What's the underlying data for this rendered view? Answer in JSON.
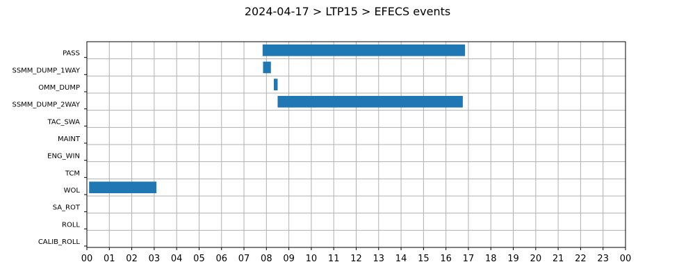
{
  "chart_data": {
    "type": "bar",
    "orientation": "horizontal-timeline",
    "title": "2024-04-17 > LTP15 > EFECS events",
    "xlabel": "",
    "ylabel": "",
    "xlim": [
      0,
      24
    ],
    "x_tick_labels": [
      "00",
      "01",
      "02",
      "03",
      "04",
      "05",
      "06",
      "07",
      "08",
      "09",
      "10",
      "11",
      "12",
      "13",
      "14",
      "15",
      "16",
      "17",
      "18",
      "19",
      "20",
      "21",
      "22",
      "23",
      "00"
    ],
    "categories": [
      "PASS",
      "SSMM_DUMP_1WAY",
      "OMM_DUMP",
      "SSMM_DUMP_2WAY",
      "TAC_SWA",
      "MAINT",
      "ENG_WIN",
      "TCM",
      "WOL",
      "SA_ROT",
      "ROLL",
      "CALIB_ROLL"
    ],
    "series": [
      {
        "values": [
          {
            "category": "PASS",
            "start": 7.83,
            "end": 16.85
          },
          {
            "category": "SSMM_DUMP_1WAY",
            "start": 7.85,
            "end": 8.2
          },
          {
            "category": "OMM_DUMP",
            "start": 8.33,
            "end": 8.5
          },
          {
            "category": "SSMM_DUMP_2WAY",
            "start": 8.5,
            "end": 16.75
          },
          {
            "category": "WOL",
            "start": 0.1,
            "end": 3.1
          }
        ]
      }
    ],
    "grid": true,
    "colors": {
      "bar": "#1f77b4",
      "grid": "#b0b0b0",
      "axis": "#000000"
    }
  }
}
